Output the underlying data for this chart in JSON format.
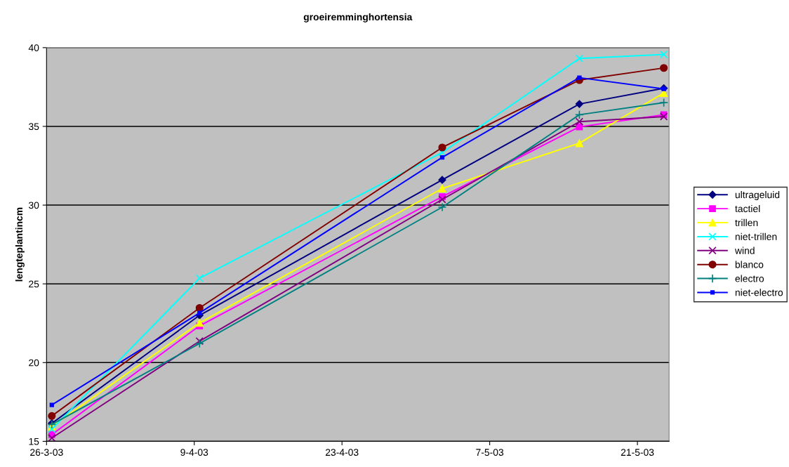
{
  "chart_data": {
    "type": "line",
    "title": "groeiremminghortensia",
    "ylabel": "lengteplantincm",
    "x": [
      "2003-03-26T12:00",
      "2003-04-09T12:00",
      "2003-05-02T12:00",
      "2003-05-15T12:00",
      "2003-05-23T12:00"
    ],
    "xlim": [
      "2003-03-26",
      "2003-05-24"
    ],
    "xticks": [
      {
        "value": "2003-03-26",
        "label": "26-3-03"
      },
      {
        "value": "2003-04-09",
        "label": "9-4-03"
      },
      {
        "value": "2003-04-23",
        "label": "23-4-03"
      },
      {
        "value": "2003-05-07",
        "label": "7-5-03"
      },
      {
        "value": "2003-05-21",
        "label": "21-5-03"
      }
    ],
    "ylim": [
      15,
      40
    ],
    "yticks": [
      15,
      20,
      25,
      30,
      35,
      40
    ],
    "grid": "y",
    "legend": "right",
    "series": [
      {
        "name": "ultrageluid",
        "color": "#000080",
        "marker": "diamond",
        "values": [
          16.14,
          23.0,
          31.6,
          36.42,
          37.42
        ]
      },
      {
        "name": "tactiel",
        "color": "#ff00ff",
        "marker": "square",
        "values": [
          15.43,
          22.33,
          30.53,
          34.97,
          35.74
        ]
      },
      {
        "name": "trillen",
        "color": "#ffff00",
        "marker": "triangle",
        "values": [
          15.95,
          22.52,
          31.05,
          33.93,
          37.12
        ]
      },
      {
        "name": "niet-trillen",
        "color": "#00ffff",
        "marker": "cross",
        "values": [
          15.77,
          25.36,
          33.34,
          39.31,
          39.57
        ]
      },
      {
        "name": "wind",
        "color": "#800080",
        "marker": "cross",
        "values": [
          15.21,
          21.36,
          30.36,
          35.3,
          35.62
        ]
      },
      {
        "name": "blanco",
        "color": "#800000",
        "marker": "circle",
        "values": [
          16.61,
          23.47,
          33.66,
          37.94,
          38.71
        ]
      },
      {
        "name": "electro",
        "color": "#008080",
        "marker": "plus",
        "values": [
          16.07,
          21.21,
          29.87,
          35.74,
          36.51
        ]
      },
      {
        "name": "niet-electro",
        "color": "#0000ff",
        "marker": "square",
        "values": [
          17.31,
          23.15,
          33.03,
          38.09,
          37.38
        ]
      }
    ]
  }
}
